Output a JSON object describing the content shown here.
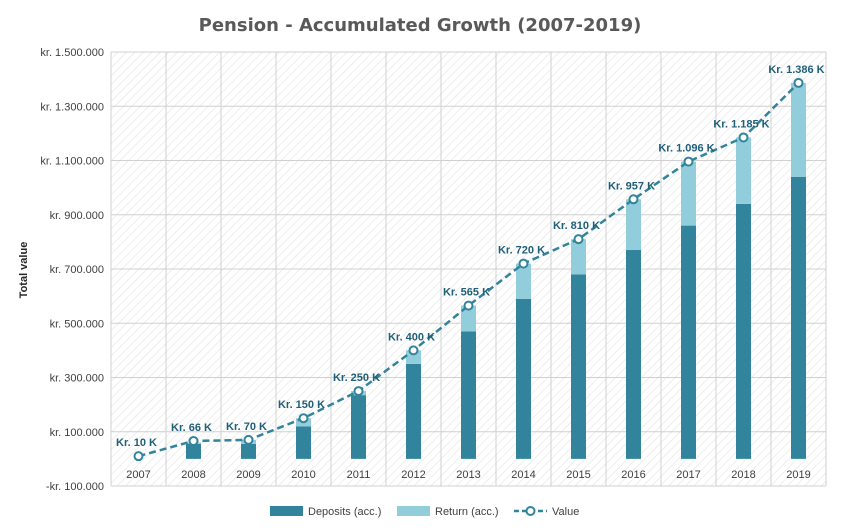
{
  "chart_data": {
    "type": "bar",
    "title": "Pension - Accumulated Growth (2007-2019)",
    "ylabel": "Total value",
    "xlabel": "",
    "categories": [
      "2007",
      "2008",
      "2009",
      "2010",
      "2011",
      "2012",
      "2013",
      "2014",
      "2015",
      "2016",
      "2017",
      "2018",
      "2019"
    ],
    "ytick_values": [
      -100000,
      100000,
      300000,
      500000,
      700000,
      900000,
      1100000,
      1300000,
      1500000
    ],
    "ytick_labels": [
      "-kr. 100.000",
      "kr. 100.000",
      "kr. 300.000",
      "kr. 500.000",
      "kr. 700.000",
      "kr. 900.000",
      "kr. 1.100.000",
      "kr. 1.300.000",
      "kr. 1.500.000"
    ],
    "ylim": [
      -100000,
      1500000
    ],
    "grid": true,
    "legend_position": "bottom",
    "stacked": true,
    "series": [
      {
        "name": "Deposits (acc.)",
        "kind": "bar",
        "color": "#31849b",
        "values": [
          0,
          55000,
          55000,
          120000,
          235000,
          350000,
          470000,
          590000,
          680000,
          770000,
          860000,
          940000,
          1040000
        ]
      },
      {
        "name": "Return (acc.)",
        "kind": "bar",
        "color": "#92cddc",
        "values": [
          0,
          5000,
          15000,
          30000,
          15000,
          50000,
          95000,
          130000,
          130000,
          187000,
          236000,
          245000,
          346000
        ]
      },
      {
        "name": "Value",
        "kind": "line",
        "color": "#31849b",
        "values": [
          10000,
          66000,
          70000,
          150000,
          250000,
          400000,
          565000,
          720000,
          810000,
          957000,
          1096000,
          1185000,
          1386000
        ],
        "labels": [
          "Kr. 10 K",
          "Kr. 66 K",
          "Kr. 70 K",
          "Kr. 150 K",
          "Kr. 250 K",
          "Kr. 400 K",
          "Kr. 565 K",
          "Kr. 720 K",
          "Kr. 810 K",
          "Kr. 957 K",
          "Kr. 1.096 K",
          "Kr. 1.185 K",
          "Kr. 1.386 K"
        ]
      }
    ]
  }
}
